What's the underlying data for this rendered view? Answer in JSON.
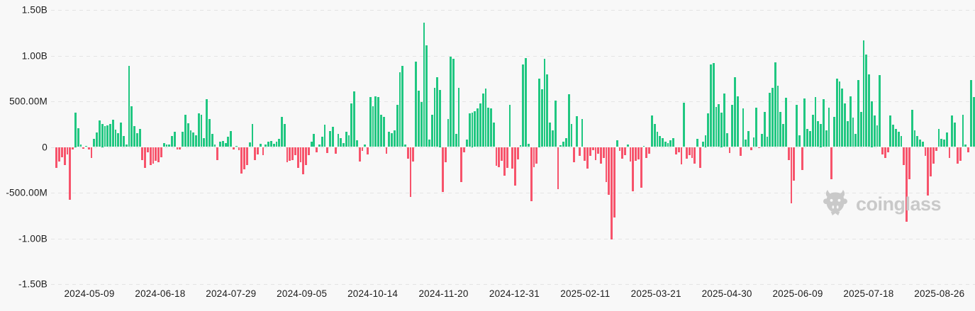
{
  "page": {
    "background_color": "#f8f8f8",
    "grid_color": "#e4e4e4",
    "text_color": "#1c1c1c"
  },
  "watermark": {
    "label": "coinglass",
    "color": "#c9c9c9"
  },
  "chart_data": {
    "type": "bar",
    "grid": "horizontal-dashed",
    "legend": "none",
    "positive_color": "#20c781",
    "negative_color": "#f7536b",
    "y_ticks": [
      "1.50B",
      "1.00B",
      "500.00M",
      "0",
      "-500.00M",
      "-1.00B",
      "-1.50B"
    ],
    "ylim_millions": [
      -1500,
      1500
    ],
    "x_tick_labels": [
      "2024-05-09",
      "2024-06-18",
      "2024-07-29",
      "2024-09-05",
      "2024-10-14",
      "2024-11-20",
      "2024-12-31",
      "2025-02-11",
      "2025-03-21",
      "2025-04-30",
      "2025-06-09",
      "2025-07-18",
      "2025-08-26"
    ],
    "values_unit": "millions",
    "values_millions": [
      -230,
      -160,
      -115,
      -200,
      -80,
      -575,
      -30,
      375,
      205,
      25,
      -20,
      15,
      -25,
      -120,
      90,
      160,
      290,
      250,
      230,
      240,
      255,
      300,
      190,
      150,
      265,
      120,
      30,
      890,
      445,
      225,
      150,
      195,
      -140,
      -230,
      -55,
      -200,
      -185,
      -150,
      -165,
      -110,
      40,
      30,
      25,
      120,
      165,
      -30,
      -30,
      170,
      350,
      260,
      180,
      160,
      130,
      370,
      355,
      95,
      520,
      310,
      145,
      30,
      -145,
      55,
      65,
      45,
      110,
      175,
      -25,
      15,
      -35,
      -290,
      -245,
      -200,
      50,
      255,
      -145,
      -85,
      35,
      -90,
      30,
      60,
      65,
      35,
      55,
      90,
      330,
      255,
      -170,
      -155,
      -140,
      -90,
      -230,
      -165,
      -295,
      -200,
      -90,
      55,
      145,
      -60,
      30,
      115,
      245,
      -65,
      175,
      220,
      -75,
      145,
      95,
      45,
      165,
      130,
      475,
      610,
      70,
      -160,
      -40,
      30,
      -80,
      550,
      445,
      555,
      545,
      350,
      330,
      -70,
      165,
      150,
      185,
      460,
      820,
      890,
      30,
      -125,
      -550,
      -160,
      935,
      620,
      490,
      1360,
      1115,
      80,
      355,
      650,
      760,
      625,
      -490,
      -170,
      305,
      985,
      965,
      140,
      645,
      -380,
      -55,
      85,
      370,
      375,
      390,
      420,
      480,
      585,
      640,
      430,
      420,
      265,
      -205,
      -220,
      -150,
      -315,
      -230,
      465,
      -240,
      -420,
      -135,
      20,
      905,
      975,
      35,
      -595,
      -220,
      -180,
      750,
      630,
      965,
      795,
      265,
      180,
      505,
      -460,
      20,
      55,
      95,
      580,
      255,
      -165,
      335,
      -95,
      310,
      -150,
      -240,
      -95,
      -35,
      -140,
      -70,
      -185,
      -120,
      -380,
      -520,
      -1010,
      -770,
      75,
      -45,
      -130,
      -90,
      25,
      -160,
      -485,
      -150,
      -135,
      -445,
      10,
      -120,
      -70,
      345,
      255,
      170,
      120,
      95,
      60,
      45,
      75,
      95,
      -85,
      -55,
      -190,
      485,
      -130,
      -90,
      -120,
      -180,
      90,
      -230,
      60,
      125,
      370,
      905,
      915,
      435,
      470,
      375,
      585,
      155,
      -65,
      460,
      765,
      555,
      -95,
      420,
      80,
      175,
      -35,
      105,
      430,
      -15,
      145,
      380,
      110,
      590,
      650,
      925,
      670,
      380,
      255,
      540,
      -145,
      -615,
      -365,
      465,
      130,
      -255,
      530,
      200,
      175,
      350,
      545,
      280,
      250,
      520,
      180,
      430,
      -350,
      330,
      745,
      715,
      640,
      475,
      280,
      555,
      325,
      145,
      735,
      380,
      1168,
      1013,
      793,
      500,
      345,
      235,
      790,
      -85,
      -120,
      -55,
      345,
      245,
      195,
      165,
      120,
      -200,
      -815,
      -350,
      410,
      180,
      120,
      80,
      60,
      -100,
      -530,
      -325,
      -180,
      -45,
      200,
      90,
      80,
      160,
      -120,
      345,
      270,
      -180,
      -150,
      350,
      30,
      -60,
      730,
      545
    ]
  }
}
